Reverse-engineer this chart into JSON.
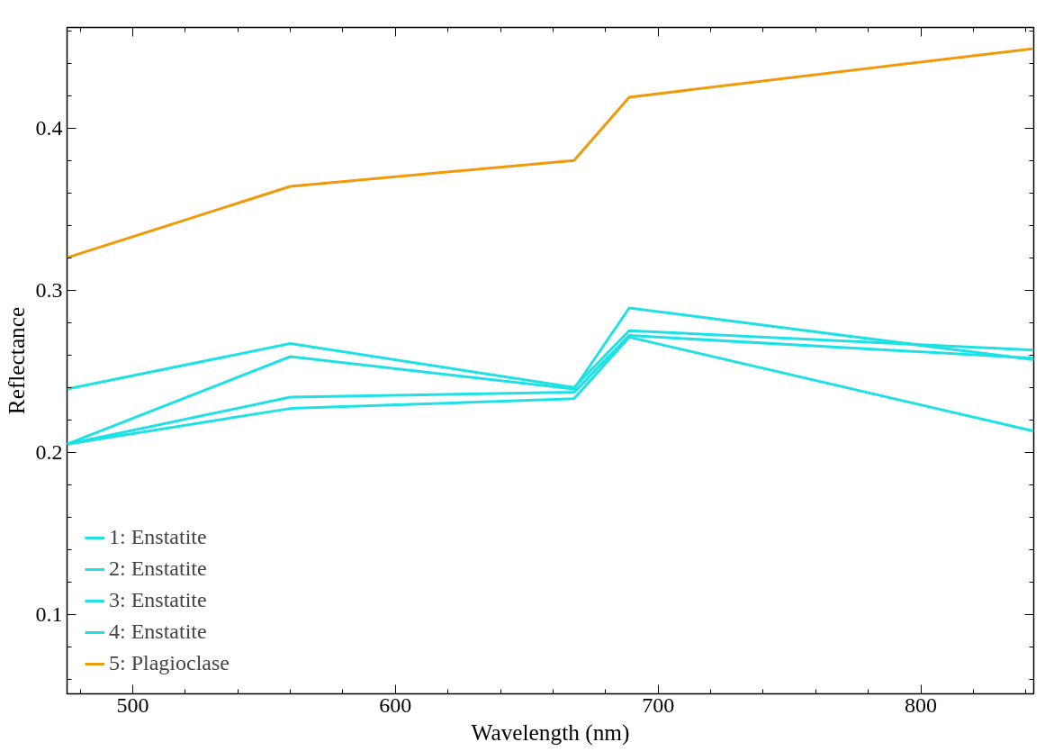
{
  "chart_data": {
    "type": "line",
    "xlabel": "Wavelength (nm)",
    "ylabel": "Reflectance",
    "x": [
      475,
      560,
      668,
      689,
      843
    ],
    "series": [
      {
        "name": "1: Enstatite",
        "color": "#1ee1e6",
        "values": [
          0.239,
          0.267,
          0.24,
          0.275,
          0.263
        ]
      },
      {
        "name": "2: Enstatite",
        "color": "#1ee1e6",
        "values": [
          0.205,
          0.259,
          0.239,
          0.289,
          0.257
        ]
      },
      {
        "name": "3: Enstatite",
        "color": "#1ee1e6",
        "values": [
          0.205,
          0.234,
          0.237,
          0.272,
          0.258
        ]
      },
      {
        "name": "4: Enstatite",
        "color": "#1ee1e6",
        "values": [
          0.205,
          0.227,
          0.233,
          0.271,
          0.213
        ]
      },
      {
        "name": "5: Plagioclase",
        "color": "#f09a0a",
        "values": [
          0.32,
          0.364,
          0.38,
          0.419,
          0.449
        ]
      }
    ],
    "xlim": [
      475,
      843
    ],
    "ylim": [
      0.051,
      0.462
    ],
    "xticks": [
      500,
      600,
      700,
      800
    ],
    "yticks": [
      0.1,
      0.2,
      0.3,
      0.4
    ],
    "grid": false,
    "legend": "bottom left",
    "marker": "none",
    "line_style": "solid"
  }
}
